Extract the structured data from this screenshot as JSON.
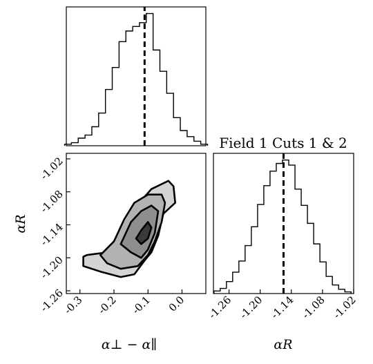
{
  "chart_data": [
    {
      "type": "histogram",
      "panel": "top-left",
      "variable": "α⊥ − α∥",
      "x_range": [
        -0.34,
        0.07
      ],
      "marker_line": -0.11,
      "marker_style": "dashed",
      "bins": [
        {
          "x": -0.335,
          "y": 2
        },
        {
          "x": -0.315,
          "y": 4
        },
        {
          "x": -0.295,
          "y": 10
        },
        {
          "x": -0.275,
          "y": 14
        },
        {
          "x": -0.255,
          "y": 25
        },
        {
          "x": -0.235,
          "y": 43
        },
        {
          "x": -0.215,
          "y": 74
        },
        {
          "x": -0.195,
          "y": 103
        },
        {
          "x": -0.175,
          "y": 137
        },
        {
          "x": -0.155,
          "y": 151
        },
        {
          "x": -0.135,
          "y": 157
        },
        {
          "x": -0.115,
          "y": 162
        },
        {
          "x": -0.095,
          "y": 174
        },
        {
          "x": -0.075,
          "y": 126
        },
        {
          "x": -0.055,
          "y": 98
        },
        {
          "x": -0.035,
          "y": 69
        },
        {
          "x": -0.015,
          "y": 37
        },
        {
          "x": 0.005,
          "y": 20
        },
        {
          "x": 0.025,
          "y": 12
        },
        {
          "x": 0.045,
          "y": 6
        },
        {
          "x": 0.065,
          "y": 2
        }
      ]
    },
    {
      "type": "contour",
      "panel": "bottom-left",
      "x_variable": "α⊥ − α∥",
      "y_variable": "αR",
      "x_range": [
        -0.34,
        0.07
      ],
      "y_range": [
        -1.265,
        -1.01
      ],
      "levels": [
        {
          "fill": "#d4d4d4",
          "points": [
            [
              -0.28,
              -1.195
            ],
            [
              -0.22,
              -1.19
            ],
            [
              -0.18,
              -1.15
            ],
            [
              -0.14,
              -1.11
            ],
            [
              -0.09,
              -1.075
            ],
            [
              -0.04,
              -1.06
            ],
            [
              -0.025,
              -1.07
            ],
            [
              -0.02,
              -1.1
            ],
            [
              -0.055,
              -1.12
            ],
            [
              -0.07,
              -1.16
            ],
            [
              -0.09,
              -1.19
            ],
            [
              -0.11,
              -1.205
            ],
            [
              -0.14,
              -1.23
            ],
            [
              -0.18,
              -1.235
            ],
            [
              -0.24,
              -1.225
            ],
            [
              -0.29,
              -1.215
            ],
            [
              -0.29,
              -1.198
            ]
          ]
        },
        {
          "fill": "#b2b2b2",
          "points": [
            [
              -0.24,
              -1.195
            ],
            [
              -0.2,
              -1.17
            ],
            [
              -0.17,
              -1.13
            ],
            [
              -0.14,
              -1.1
            ],
            [
              -0.1,
              -1.085
            ],
            [
              -0.06,
              -1.085
            ],
            [
              -0.05,
              -1.1
            ],
            [
              -0.06,
              -1.135
            ],
            [
              -0.08,
              -1.17
            ],
            [
              -0.1,
              -1.195
            ],
            [
              -0.13,
              -1.215
            ],
            [
              -0.18,
              -1.22
            ],
            [
              -0.22,
              -1.21
            ]
          ]
        },
        {
          "fill": "#8e8e8e",
          "points": [
            [
              -0.18,
              -1.175
            ],
            [
              -0.15,
              -1.135
            ],
            [
              -0.12,
              -1.115
            ],
            [
              -0.09,
              -1.105
            ],
            [
              -0.07,
              -1.115
            ],
            [
              -0.08,
              -1.155
            ],
            [
              -0.1,
              -1.185
            ],
            [
              -0.12,
              -1.2
            ],
            [
              -0.15,
              -1.19
            ]
          ]
        },
        {
          "fill": "#3a3a3a",
          "points": [
            [
              -0.135,
              -1.165
            ],
            [
              -0.12,
              -1.15
            ],
            [
              -0.1,
              -1.135
            ],
            [
              -0.09,
              -1.145
            ],
            [
              -0.1,
              -1.165
            ],
            [
              -0.12,
              -1.175
            ]
          ]
        }
      ]
    },
    {
      "type": "histogram",
      "panel": "bottom-right",
      "title": "Field 1 Cuts 1 & 2",
      "variable": "αR",
      "x_range": [
        -1.29,
        -1.02
      ],
      "marker_line": -1.155,
      "marker_style": "dashed",
      "bins": [
        {
          "x": -1.283,
          "y": 3
        },
        {
          "x": -1.271,
          "y": 6
        },
        {
          "x": -1.259,
          "y": 14
        },
        {
          "x": -1.247,
          "y": 25
        },
        {
          "x": -1.235,
          "y": 38
        },
        {
          "x": -1.223,
          "y": 56
        },
        {
          "x": -1.211,
          "y": 78
        },
        {
          "x": -1.199,
          "y": 104
        },
        {
          "x": -1.187,
          "y": 126
        },
        {
          "x": -1.175,
          "y": 143
        },
        {
          "x": -1.163,
          "y": 152
        },
        {
          "x": -1.151,
          "y": 156
        },
        {
          "x": -1.139,
          "y": 150
        },
        {
          "x": -1.127,
          "y": 122
        },
        {
          "x": -1.115,
          "y": 103
        },
        {
          "x": -1.103,
          "y": 82
        },
        {
          "x": -1.091,
          "y": 58
        },
        {
          "x": -1.079,
          "y": 37
        },
        {
          "x": -1.067,
          "y": 20
        },
        {
          "x": -1.055,
          "y": 10
        },
        {
          "x": -1.043,
          "y": 5
        },
        {
          "x": -1.031,
          "y": 2
        }
      ]
    }
  ],
  "axes": {
    "bottom_left": {
      "xlabel": "α⊥ − α∥",
      "ylabel": "αR",
      "xticks": [
        "-0.3",
        "-0.2",
        "-0.1",
        "0.0"
      ],
      "xtick_values": [
        -0.3,
        -0.2,
        -0.1,
        0.0
      ],
      "yticks": [
        "-1.26",
        "-1.20",
        "-1.14",
        "-1.08",
        "-1.02"
      ],
      "ytick_values": [
        -1.26,
        -1.2,
        -1.14,
        -1.08,
        -1.02
      ]
    },
    "bottom_right": {
      "xlabel": "αR",
      "xticks": [
        "-1.26",
        "-1.20",
        "-1.14",
        "-1.08",
        "-1.02"
      ],
      "xtick_values": [
        -1.26,
        -1.2,
        -1.14,
        -1.08,
        -1.02
      ]
    }
  },
  "colors": {
    "axis": "#000000",
    "histogram_line": "#000000",
    "contour_edge": "#000000"
  }
}
